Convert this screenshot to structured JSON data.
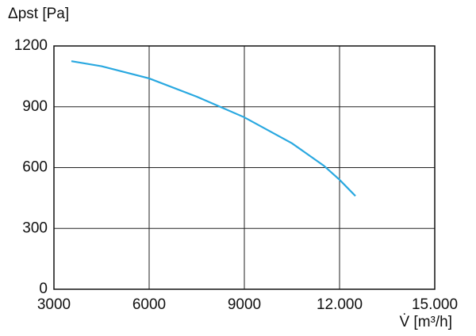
{
  "chart_data": {
    "type": "line",
    "ylabel": "Δpst [Pa]",
    "xlabel": "V̇ [m³/h]",
    "x": [
      3550,
      4500,
      6000,
      7500,
      9000,
      10500,
      11500,
      12000,
      12500
    ],
    "series": [
      {
        "color": "#29a8e0",
        "values": [
          1125,
          1100,
          1040,
          950,
          848,
          720,
          610,
          540,
          460
        ]
      }
    ],
    "xlim": [
      3000,
      15000
    ],
    "xticks": [
      3000,
      6000,
      9000,
      {
        "value": 12000,
        "label": "12.000"
      },
      {
        "value": 15000,
        "label": "15.000"
      }
    ],
    "ylim": [
      0,
      1200
    ],
    "yticks": [
      0,
      300,
      600,
      900,
      1200
    ],
    "grid": true
  }
}
